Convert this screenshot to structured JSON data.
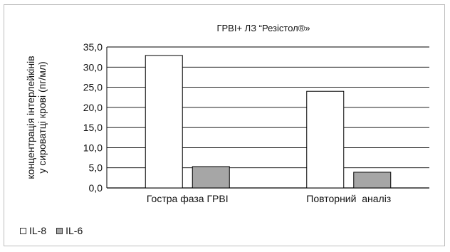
{
  "chart_data": {
    "type": "bar",
    "title": "ГРВІ+ ЛЗ “Резістол®»",
    "ylabel_lines": [
      "концентрація інтерлейкінів",
      "у сироватці крові (пг/мл)"
    ],
    "xlabel": "",
    "categories": [
      "Гостра фаза ГРВІ",
      "Повторний  аналіз"
    ],
    "series": [
      {
        "name": "IL-8",
        "values": [
          32.9,
          24.0
        ],
        "color": "#ffffff"
      },
      {
        "name": "IL-6",
        "values": [
          5.3,
          3.9
        ],
        "color": "#a6a6a6"
      }
    ],
    "ylim": [
      0,
      35
    ],
    "yticks": [
      "0,0",
      "5,0",
      "10,0",
      "15,0",
      "20,0",
      "25,0",
      "30,0",
      "35,0"
    ],
    "grid": true,
    "legend_position": "bottom-left"
  },
  "legend": {
    "items": [
      "IL-8",
      "IL-6"
    ]
  }
}
